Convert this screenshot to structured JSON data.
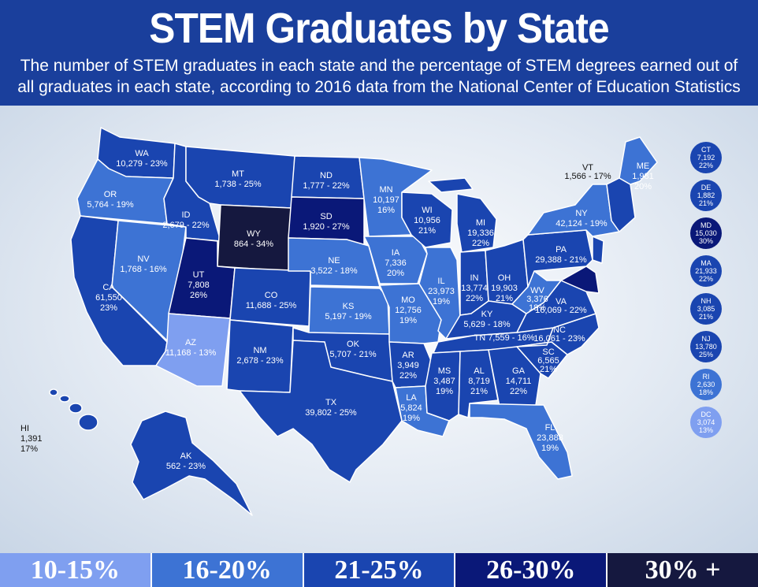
{
  "header": {
    "title": "STEM Graduates by State",
    "subtitle": "The number of STEM graduates in each state and the percentage of STEM degrees earned out of all graduates in each state, according to 2016 data from the National Center of Education Statistics"
  },
  "colors": {
    "band_10_15": "#7f9ff0",
    "band_16_20": "#3d73d4",
    "band_21_25": "#1a45b0",
    "band_26_30": "#0a1878",
    "band_30_plus": "#15183f",
    "header": "#1a3f9c"
  },
  "states": {
    "WA": {
      "line1": "WA",
      "line2": "10,279 - 23%"
    },
    "OR": {
      "line1": "OR",
      "line2": "5,764 - 19%"
    },
    "CA": {
      "line1": "CA",
      "line2": "61,550",
      "line3": "23%"
    },
    "NV": {
      "line1": "NV",
      "line2": "1,768 - 16%"
    },
    "ID": {
      "line1": "ID",
      "line2": "2,679 - 22%"
    },
    "MT": {
      "line1": "MT",
      "line2": "1,738 - 25%"
    },
    "WY": {
      "line1": "WY",
      "line2": "864 - 34%"
    },
    "UT": {
      "line1": "UT",
      "line2": "7,808",
      "line3": "26%"
    },
    "AZ": {
      "line1": "AZ",
      "line2": "11,168 - 13%"
    },
    "CO": {
      "line1": "CO",
      "line2": "11,688 - 25%"
    },
    "NM": {
      "line1": "NM",
      "line2": "2,678 - 23%"
    },
    "ND": {
      "line1": "ND",
      "line2": "1,777 - 22%"
    },
    "SD": {
      "line1": "SD",
      "line2": "1,920 - 27%"
    },
    "NE": {
      "line1": "NE",
      "line2": "3,522 - 18%"
    },
    "KS": {
      "line1": "KS",
      "line2": "5,197 - 19%"
    },
    "OK": {
      "line1": "OK",
      "line2": "5,707 - 21%"
    },
    "TX": {
      "line1": "TX",
      "line2": "39,802 - 25%"
    },
    "MN": {
      "line1": "MN",
      "line2": "10,197",
      "line3": "16%"
    },
    "IA": {
      "line1": "IA",
      "line2": "7,336",
      "line3": "20%"
    },
    "MO": {
      "line1": "MO",
      "line2": "12,756",
      "line3": "19%"
    },
    "AR": {
      "line1": "AR",
      "line2": "3,949",
      "line3": "22%"
    },
    "LA": {
      "line1": "LA",
      "line2": "5,824",
      "line3": "19%"
    },
    "WI": {
      "line1": "WI",
      "line2": "10,956",
      "line3": "21%"
    },
    "IL": {
      "line1": "IL",
      "line2": "23,973",
      "line3": "19%"
    },
    "MI": {
      "line1": "MI",
      "line2": "19,336",
      "line3": "22%"
    },
    "IN": {
      "line1": "IN",
      "line2": "13,774",
      "line3": "22%"
    },
    "OH": {
      "line1": "OH",
      "line2": "19,903",
      "line3": "21%"
    },
    "KY": {
      "line1": "KY",
      "line2": "5,629 - 18%"
    },
    "TN": {
      "line1": "TN 7,559 - 16%"
    },
    "MS": {
      "line1": "MS",
      "line2": "3,487",
      "line3": "19%"
    },
    "AL": {
      "line1": "AL",
      "line2": "8,719",
      "line3": "21%"
    },
    "GA": {
      "line1": "GA",
      "line2": "14,711",
      "line3": "22%"
    },
    "FL": {
      "line1": "FL",
      "line2": "23,888",
      "line3": "19%"
    },
    "SC": {
      "line1": "SC",
      "line2": "6,565",
      "line3": "21%"
    },
    "NC": {
      "line1": "NC",
      "line2": "16,061 - 23%"
    },
    "VA": {
      "line1": "VA",
      "line2": "16,069 - 22%"
    },
    "WV": {
      "line1": "WV",
      "line2": "3,376",
      "line3": "18%"
    },
    "PA": {
      "line1": "PA",
      "line2": "29,388 - 21%"
    },
    "NY": {
      "line1": "NY",
      "line2": "42,124 - 19%"
    },
    "VT": {
      "line1": "VT",
      "line2": "1,566 - 17%"
    },
    "ME": {
      "line1": "ME",
      "line2": "1,981",
      "line3": "20%"
    },
    "AK": {
      "line1": "AK",
      "line2": "562 - 23%"
    },
    "HI": {
      "line1": "HI",
      "line2": "1,391",
      "line3": "17%"
    }
  },
  "side_states": [
    {
      "abbr": "CT",
      "count": "7,192",
      "pct": "22%",
      "band": "band_21_25"
    },
    {
      "abbr": "DE",
      "count": "1,882",
      "pct": "21%",
      "band": "band_21_25"
    },
    {
      "abbr": "MD",
      "count": "15,030",
      "pct": "30%",
      "band": "band_26_30"
    },
    {
      "abbr": "MA",
      "count": "21,933",
      "pct": "22%",
      "band": "band_21_25"
    },
    {
      "abbr": "NH",
      "count": "3,085",
      "pct": "21%",
      "band": "band_21_25"
    },
    {
      "abbr": "NJ",
      "count": "13,780",
      "pct": "25%",
      "band": "band_21_25"
    },
    {
      "abbr": "RI",
      "count": "2,630",
      "pct": "18%",
      "band": "band_16_20"
    },
    {
      "abbr": "DC",
      "count": "3,074",
      "pct": "13%",
      "band": "band_10_15"
    }
  ],
  "legend": [
    "10-15%",
    "16-20%",
    "21-25%",
    "26-30%",
    "30% +"
  ]
}
